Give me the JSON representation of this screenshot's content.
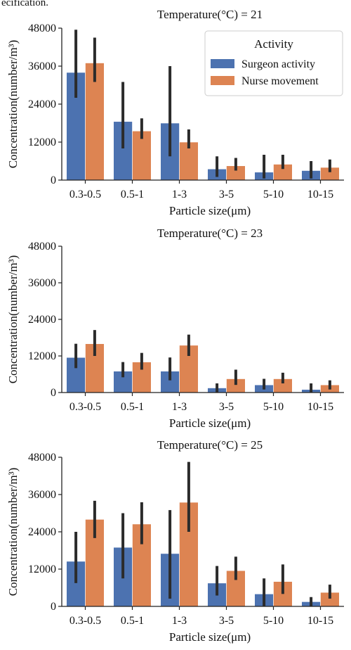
{
  "header_fragment": "ecification.",
  "colors": {
    "surgeon": "#4c72b0",
    "nurse": "#dd8452",
    "errorbar": "#2b2b2b"
  },
  "legend": {
    "title": "Activity",
    "entries": [
      "Surgeon activity",
      "Nurse movement"
    ]
  },
  "chart_data": [
    {
      "type": "bar",
      "title": "Temperature(°C) = 21",
      "xlabel": "Particle size(μm)",
      "ylabel": "Concentration(number/m³)",
      "categories": [
        "0.3-0.5",
        "0.5-1",
        "1-3",
        "3-5",
        "5-10",
        "10-15"
      ],
      "yticks": [
        0,
        12000,
        24000,
        36000,
        48000
      ],
      "ylim": [
        0,
        48000
      ],
      "legend": "top-right",
      "series": [
        {
          "name": "Surgeon activity",
          "values": [
            34000,
            18500,
            18000,
            3500,
            2500,
            3000
          ],
          "err_low": [
            26000,
            10000,
            7500,
            1000,
            500,
            500
          ],
          "err_high": [
            47500,
            31000,
            36000,
            7500,
            8000,
            6000
          ]
        },
        {
          "name": "Nurse movement",
          "values": [
            37000,
            15500,
            12000,
            4500,
            5000,
            4000
          ],
          "err_low": [
            31000,
            13000,
            10000,
            3000,
            3500,
            2500
          ],
          "err_high": [
            45000,
            19500,
            16000,
            7000,
            8000,
            6500
          ]
        }
      ]
    },
    {
      "type": "bar",
      "title": "Temperature(°C) = 23",
      "xlabel": "Particle size(μm)",
      "ylabel": "Concentration(number/m³)",
      "categories": [
        "0.3-0.5",
        "0.5-1",
        "1-3",
        "3-5",
        "5-10",
        "10-15"
      ],
      "yticks": [
        0,
        12000,
        24000,
        36000,
        48000
      ],
      "ylim": [
        0,
        48000
      ],
      "series": [
        {
          "name": "Surgeon activity",
          "values": [
            11500,
            7000,
            7000,
            1500,
            2500,
            1000
          ],
          "err_low": [
            8000,
            5000,
            4000,
            0,
            1000,
            0
          ],
          "err_high": [
            16000,
            10000,
            11500,
            3000,
            4500,
            3000
          ]
        },
        {
          "name": "Nurse movement",
          "values": [
            16000,
            10000,
            15500,
            4500,
            4500,
            2500
          ],
          "err_low": [
            12000,
            7500,
            12000,
            2500,
            3000,
            1000
          ],
          "err_high": [
            20500,
            13000,
            19000,
            7500,
            6500,
            4000
          ]
        }
      ]
    },
    {
      "type": "bar",
      "title": "Temperature(°C) = 25",
      "xlabel": "Particle size(μm)",
      "ylabel": "Concentration(number/m³)",
      "categories": [
        "0.3-0.5",
        "0.5-1",
        "1-3",
        "3-5",
        "5-10",
        "10-15"
      ],
      "yticks": [
        0,
        12000,
        24000,
        36000,
        48000
      ],
      "ylim": [
        0,
        48000
      ],
      "series": [
        {
          "name": "Surgeon activity",
          "values": [
            14500,
            19000,
            17000,
            7500,
            4000,
            1500
          ],
          "err_low": [
            7500,
            9000,
            2500,
            3500,
            0,
            0
          ],
          "err_high": [
            24000,
            30000,
            31000,
            13000,
            9000,
            3000
          ]
        },
        {
          "name": "Nurse movement",
          "values": [
            28000,
            26500,
            33500,
            11500,
            8000,
            4500
          ],
          "err_low": [
            22000,
            20000,
            24000,
            8500,
            4000,
            2500
          ],
          "err_high": [
            34000,
            33500,
            46500,
            16000,
            13500,
            7000
          ]
        }
      ]
    }
  ]
}
